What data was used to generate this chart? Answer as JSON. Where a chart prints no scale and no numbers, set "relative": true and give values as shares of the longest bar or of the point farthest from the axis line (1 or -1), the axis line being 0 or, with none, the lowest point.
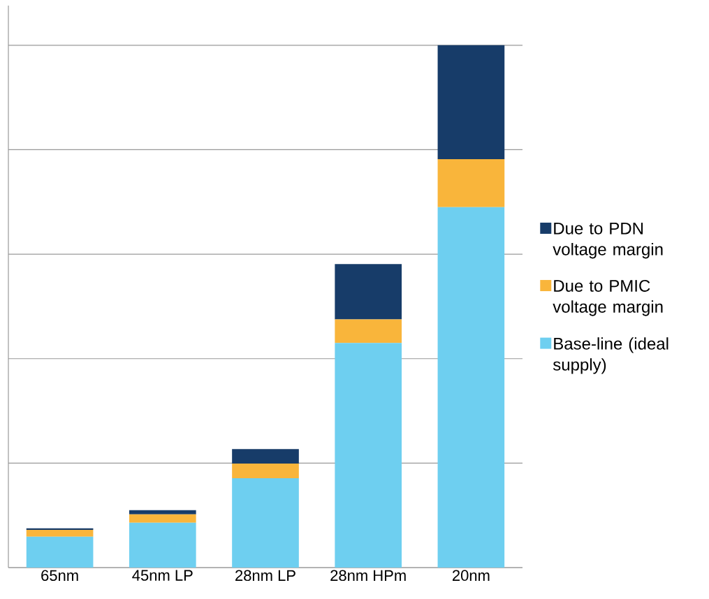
{
  "chart_data": {
    "type": "bar",
    "stacked": true,
    "relative": true,
    "grid": "y",
    "legend": "right",
    "categories": [
      "65nm",
      "45nm LP",
      "28nm LP",
      "28nm HPm",
      "20nm"
    ],
    "series": [
      {
        "name": "Base-line (ideal supply)",
        "color": "#6ecff0",
        "values": [
          0.059,
          0.086,
          0.171,
          0.43,
          0.69
        ]
      },
      {
        "name": "Due to PMIC voltage margin",
        "color": "#f9b53b",
        "values": [
          0.013,
          0.016,
          0.028,
          0.045,
          0.092
        ]
      },
      {
        "name": "Due to PDN voltage margin",
        "color": "#173c69",
        "values": [
          0.003,
          0.008,
          0.028,
          0.106,
          0.218
        ]
      }
    ]
  }
}
